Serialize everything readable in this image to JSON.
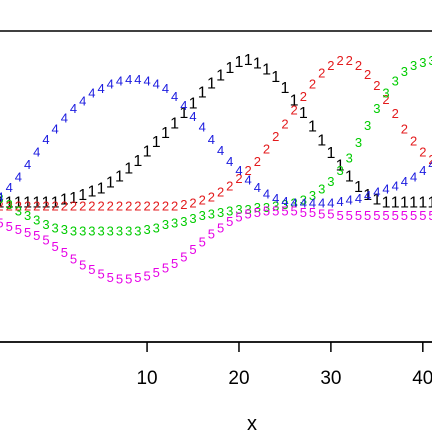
{
  "chart_data": {
    "type": "scatter",
    "xlabel": "x",
    "ylabel": "",
    "title": "",
    "xlim": [
      -6,
      41
    ],
    "ylim": [
      -0.3,
      1.6
    ],
    "xticks": [
      10,
      20,
      30,
      40
    ],
    "xtick_labels": [
      "10",
      "20",
      "30",
      "40"
    ],
    "grid": false,
    "series": [
      {
        "name": "1",
        "color": "#000000",
        "x": [
          -6,
          -5,
          -4,
          -3,
          -2,
          -1,
          0,
          1,
          2,
          3,
          4,
          5,
          6,
          7,
          8,
          9,
          10,
          11,
          12,
          13,
          14,
          15,
          16,
          17,
          18,
          19,
          20,
          21,
          22,
          23,
          24,
          25,
          26,
          27,
          28,
          29,
          30,
          31,
          32,
          33,
          34,
          35,
          36,
          37,
          38,
          39,
          40,
          41
        ],
        "y": [
          0.53,
          0.53,
          0.53,
          0.53,
          0.53,
          0.53,
          0.53,
          0.55,
          0.56,
          0.58,
          0.6,
          0.62,
          0.66,
          0.7,
          0.75,
          0.8,
          0.86,
          0.92,
          0.98,
          1.04,
          1.11,
          1.17,
          1.24,
          1.3,
          1.35,
          1.4,
          1.44,
          1.45,
          1.43,
          1.39,
          1.34,
          1.27,
          1.19,
          1.11,
          1.02,
          0.93,
          0.85,
          0.77,
          0.7,
          0.63,
          0.58,
          0.55,
          0.53,
          0.53,
          0.53,
          0.53,
          0.53,
          0.53
        ]
      },
      {
        "name": "2",
        "color": "#e31a1c",
        "x": [
          -6,
          -5,
          -4,
          -3,
          -2,
          -1,
          0,
          1,
          2,
          3,
          4,
          5,
          6,
          7,
          8,
          9,
          10,
          11,
          12,
          13,
          14,
          15,
          16,
          17,
          18,
          19,
          20,
          21,
          22,
          23,
          24,
          25,
          26,
          27,
          28,
          29,
          30,
          31,
          32,
          33,
          34,
          35,
          36,
          37,
          38,
          39,
          40,
          41
        ],
        "y": [
          0.51,
          0.51,
          0.51,
          0.51,
          0.51,
          0.51,
          0.51,
          0.51,
          0.51,
          0.51,
          0.51,
          0.51,
          0.51,
          0.51,
          0.51,
          0.51,
          0.51,
          0.51,
          0.51,
          0.51,
          0.52,
          0.53,
          0.55,
          0.57,
          0.6,
          0.64,
          0.69,
          0.74,
          0.8,
          0.88,
          0.96,
          1.04,
          1.13,
          1.22,
          1.3,
          1.37,
          1.42,
          1.45,
          1.45,
          1.42,
          1.36,
          1.29,
          1.2,
          1.11,
          1.01,
          0.93,
          0.86,
          0.81
        ]
      },
      {
        "name": "3",
        "color": "#00cc00",
        "x": [
          -6,
          -5,
          -4,
          -3,
          -2,
          -1,
          0,
          1,
          2,
          3,
          4,
          5,
          6,
          7,
          8,
          9,
          10,
          11,
          12,
          13,
          14,
          15,
          16,
          17,
          18,
          19,
          20,
          21,
          22,
          23,
          24,
          25,
          26,
          27,
          28,
          29,
          30,
          31,
          32,
          33,
          34,
          35,
          36,
          37,
          38,
          39,
          40,
          41
        ],
        "y": [
          0.56,
          0.52,
          0.48,
          0.45,
          0.42,
          0.39,
          0.37,
          0.36,
          0.35,
          0.35,
          0.35,
          0.35,
          0.35,
          0.35,
          0.35,
          0.35,
          0.36,
          0.37,
          0.39,
          0.4,
          0.41,
          0.43,
          0.45,
          0.46,
          0.47,
          0.48,
          0.49,
          0.49,
          0.5,
          0.5,
          0.51,
          0.52,
          0.53,
          0.55,
          0.58,
          0.62,
          0.67,
          0.74,
          0.82,
          0.92,
          1.03,
          1.14,
          1.24,
          1.32,
          1.38,
          1.42,
          1.44,
          1.45
        ]
      },
      {
        "name": "4",
        "color": "#1a1adf",
        "x": [
          -6,
          -5,
          -4,
          -3,
          -2,
          -1,
          0,
          1,
          2,
          3,
          4,
          5,
          6,
          7,
          8,
          9,
          10,
          11,
          12,
          13,
          14,
          15,
          16,
          17,
          18,
          19,
          20,
          21,
          22,
          23,
          24,
          25,
          26,
          27,
          28,
          29,
          30,
          31,
          32,
          33,
          34,
          35,
          36,
          37,
          38,
          39,
          40,
          41
        ],
        "y": [
          0.57,
          0.63,
          0.7,
          0.78,
          0.86,
          0.94,
          1.01,
          1.08,
          1.14,
          1.19,
          1.24,
          1.27,
          1.3,
          1.32,
          1.33,
          1.33,
          1.32,
          1.3,
          1.27,
          1.22,
          1.16,
          1.09,
          1.02,
          0.94,
          0.87,
          0.8,
          0.74,
          0.68,
          0.63,
          0.59,
          0.56,
          0.54,
          0.53,
          0.53,
          0.53,
          0.53,
          0.53,
          0.54,
          0.55,
          0.56,
          0.58,
          0.6,
          0.62,
          0.64,
          0.67,
          0.7,
          0.74,
          0.78
        ]
      },
      {
        "name": "5",
        "color": "#e600e6",
        "x": [
          -6,
          -5,
          -4,
          -3,
          -2,
          -1,
          0,
          1,
          2,
          3,
          4,
          5,
          6,
          7,
          8,
          9,
          10,
          11,
          12,
          13,
          14,
          15,
          16,
          17,
          18,
          19,
          20,
          21,
          22,
          23,
          24,
          25,
          26,
          27,
          28,
          29,
          30,
          31,
          32,
          33,
          34,
          35,
          36,
          37,
          38,
          39,
          40,
          41
        ],
        "y": [
          0.4,
          0.38,
          0.36,
          0.34,
          0.32,
          0.29,
          0.25,
          0.21,
          0.17,
          0.13,
          0.1,
          0.07,
          0.05,
          0.04,
          0.04,
          0.05,
          0.06,
          0.08,
          0.11,
          0.14,
          0.18,
          0.23,
          0.28,
          0.33,
          0.37,
          0.41,
          0.44,
          0.46,
          0.47,
          0.48,
          0.48,
          0.48,
          0.48,
          0.47,
          0.47,
          0.46,
          0.46,
          0.45,
          0.45,
          0.45,
          0.45,
          0.45,
          0.45,
          0.45,
          0.45,
          0.45,
          0.45,
          0.45
        ]
      }
    ]
  }
}
